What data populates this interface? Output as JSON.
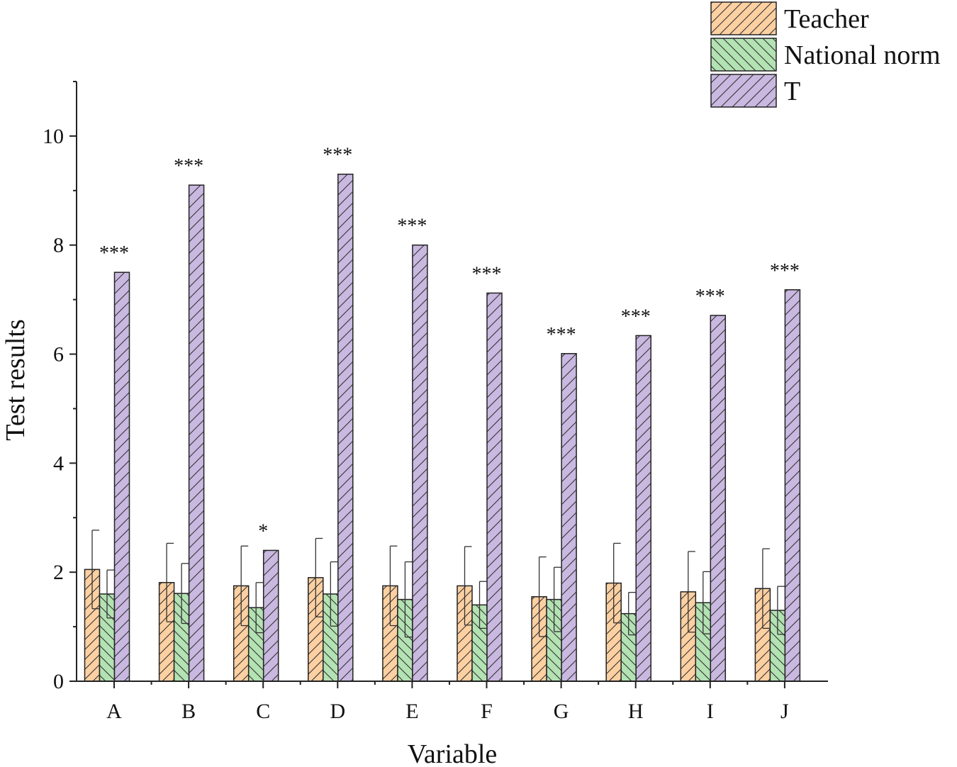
{
  "chart_data": {
    "type": "bar",
    "xlabel": "Variable",
    "ylabel": "Test results",
    "ylim": [
      0,
      11
    ],
    "yticks": [
      0,
      2,
      4,
      6,
      8,
      10
    ],
    "categories": [
      "A",
      "B",
      "C",
      "D",
      "E",
      "F",
      "G",
      "H",
      "I",
      "J"
    ],
    "series": [
      {
        "name": "Teacher",
        "color": "#fdd0a2",
        "hatch": "forward",
        "values": [
          2.05,
          1.81,
          1.75,
          1.9,
          1.75,
          1.75,
          1.55,
          1.8,
          1.64,
          1.7
        ],
        "errors": [
          0.72,
          0.72,
          0.73,
          0.72,
          0.73,
          0.72,
          0.73,
          0.73,
          0.74,
          0.73
        ]
      },
      {
        "name": "National norm",
        "color": "#b3e2b3",
        "hatch": "backward",
        "values": [
          1.6,
          1.61,
          1.35,
          1.6,
          1.5,
          1.4,
          1.5,
          1.24,
          1.44,
          1.3
        ],
        "errors": [
          0.44,
          0.55,
          0.46,
          0.59,
          0.69,
          0.43,
          0.59,
          0.39,
          0.57,
          0.44
        ]
      },
      {
        "name": "T",
        "color": "#c9b8e0",
        "hatch": "forward",
        "values": [
          7.5,
          9.1,
          2.4,
          9.3,
          8.0,
          7.12,
          6.01,
          6.34,
          6.71,
          7.18
        ],
        "errors": [
          0,
          0,
          0,
          0,
          0,
          0,
          0,
          0,
          0,
          0
        ]
      }
    ],
    "annotations": [
      "***",
      "***",
      "*",
      "***",
      "***",
      "***",
      "***",
      "***",
      "***",
      "***"
    ],
    "legend_position": "top-right",
    "grid": false
  }
}
